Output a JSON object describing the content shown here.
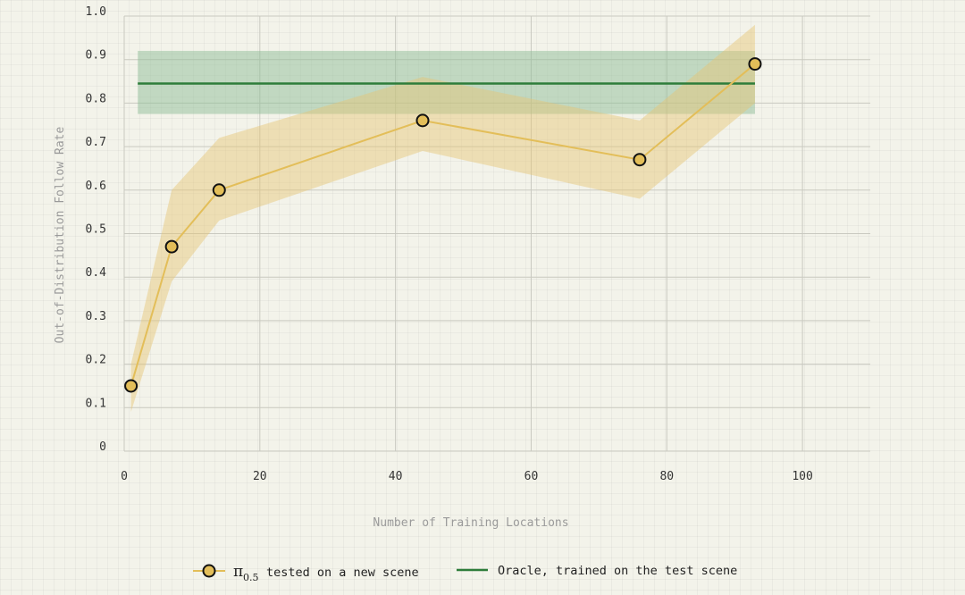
{
  "chart_data": {
    "type": "line",
    "title": "",
    "xlabel": "Number of Training Locations",
    "ylabel": "Out-of-Distribution Follow Rate",
    "xlim": [
      0,
      110
    ],
    "ylim": [
      0,
      1.0
    ],
    "x_ticks": [
      0,
      20,
      40,
      60,
      80,
      100
    ],
    "x_tick_labels": [
      "0",
      "20",
      "40",
      "60",
      "80",
      "100"
    ],
    "y_ticks": [
      0,
      0.1,
      0.2,
      0.3,
      0.4,
      0.5,
      0.6,
      0.7,
      0.8,
      0.9,
      1.0
    ],
    "y_tick_labels": [
      "0",
      "0.1",
      "0.2",
      "0.3",
      "0.4",
      "0.5",
      "0.6",
      "0.7",
      "0.8",
      "0.9",
      "1.0"
    ],
    "grid": true,
    "legend_position": "bottom-center",
    "series": [
      {
        "name_prefix": "π",
        "name_subscript": "0.5",
        "name_suffix": "tested on a new scene",
        "color": "#e3be59",
        "band_color": "#e6c674",
        "marker": "circle",
        "x": [
          1,
          7,
          14,
          44,
          76,
          93
        ],
        "y": [
          0.15,
          0.47,
          0.6,
          0.76,
          0.67,
          0.89
        ],
        "y_lower": [
          0.09,
          0.39,
          0.53,
          0.69,
          0.58,
          0.8
        ],
        "y_upper": [
          0.2,
          0.6,
          0.72,
          0.86,
          0.76,
          0.98
        ]
      },
      {
        "name": "Oracle, trained on the test scene",
        "color": "#2e7d3a",
        "band_color": "#8fbe98",
        "x_start": 2,
        "x_end": 93,
        "y": 0.845,
        "y_lower": 0.775,
        "y_upper": 0.92
      }
    ]
  }
}
